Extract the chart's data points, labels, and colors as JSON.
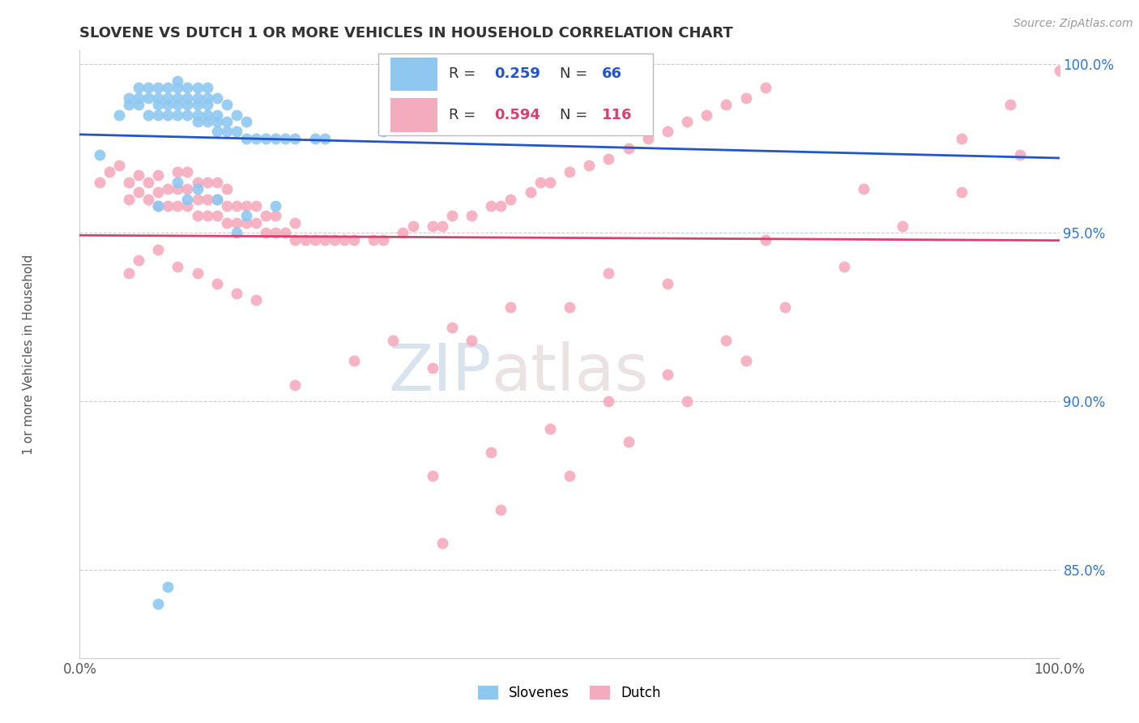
{
  "title": "SLOVENE VS DUTCH 1 OR MORE VEHICLES IN HOUSEHOLD CORRELATION CHART",
  "source_text": "Source: ZipAtlas.com",
  "ylabel": "1 or more Vehicles in Household",
  "legend_labels": [
    "Slovenes",
    "Dutch"
  ],
  "legend_r": [
    "R = 0.259",
    "R = 0.594"
  ],
  "legend_n": [
    "N = 66",
    "N = 116"
  ],
  "xlim": [
    0.0,
    1.0
  ],
  "ylim_low": 0.824,
  "ylim_high": 1.004,
  "blue_color": "#8EC8F0",
  "pink_color": "#F5ABBE",
  "blue_line_color": "#2255CC",
  "pink_line_color": "#D94070",
  "watermark_zip": "ZIP",
  "watermark_atlas": "atlas",
  "slovene_x": [
    0.02,
    0.04,
    0.05,
    0.05,
    0.06,
    0.06,
    0.06,
    0.07,
    0.07,
    0.07,
    0.08,
    0.08,
    0.08,
    0.08,
    0.09,
    0.09,
    0.09,
    0.09,
    0.1,
    0.1,
    0.1,
    0.1,
    0.1,
    0.11,
    0.11,
    0.11,
    0.11,
    0.12,
    0.12,
    0.12,
    0.12,
    0.12,
    0.13,
    0.13,
    0.13,
    0.13,
    0.13,
    0.14,
    0.14,
    0.14,
    0.14,
    0.15,
    0.15,
    0.15,
    0.16,
    0.16,
    0.17,
    0.17,
    0.18,
    0.19,
    0.2,
    0.21,
    0.22,
    0.24,
    0.25,
    0.31,
    0.08,
    0.1,
    0.11,
    0.12,
    0.14,
    0.16,
    0.17,
    0.2,
    0.08,
    0.09
  ],
  "slovene_y": [
    0.973,
    0.985,
    0.988,
    0.99,
    0.988,
    0.99,
    0.993,
    0.985,
    0.99,
    0.993,
    0.985,
    0.988,
    0.99,
    0.993,
    0.985,
    0.988,
    0.99,
    0.993,
    0.985,
    0.988,
    0.99,
    0.993,
    0.995,
    0.985,
    0.988,
    0.99,
    0.993,
    0.983,
    0.985,
    0.988,
    0.99,
    0.993,
    0.983,
    0.985,
    0.988,
    0.99,
    0.993,
    0.98,
    0.983,
    0.985,
    0.99,
    0.98,
    0.983,
    0.988,
    0.98,
    0.985,
    0.978,
    0.983,
    0.978,
    0.978,
    0.978,
    0.978,
    0.978,
    0.978,
    0.978,
    0.98,
    0.958,
    0.965,
    0.96,
    0.963,
    0.96,
    0.95,
    0.955,
    0.958,
    0.84,
    0.845
  ],
  "dutch_x": [
    0.02,
    0.03,
    0.04,
    0.05,
    0.05,
    0.06,
    0.06,
    0.07,
    0.07,
    0.08,
    0.08,
    0.08,
    0.09,
    0.09,
    0.1,
    0.1,
    0.1,
    0.11,
    0.11,
    0.11,
    0.12,
    0.12,
    0.12,
    0.13,
    0.13,
    0.13,
    0.14,
    0.14,
    0.14,
    0.15,
    0.15,
    0.15,
    0.16,
    0.16,
    0.17,
    0.17,
    0.18,
    0.18,
    0.19,
    0.19,
    0.2,
    0.2,
    0.21,
    0.22,
    0.22,
    0.23,
    0.24,
    0.25,
    0.26,
    0.27,
    0.28,
    0.3,
    0.31,
    0.33,
    0.34,
    0.36,
    0.37,
    0.38,
    0.4,
    0.42,
    0.43,
    0.44,
    0.46,
    0.47,
    0.48,
    0.5,
    0.52,
    0.54,
    0.56,
    0.58,
    0.6,
    0.62,
    0.64,
    0.66,
    0.68,
    0.7,
    0.05,
    0.06,
    0.08,
    0.1,
    0.12,
    0.14,
    0.16,
    0.18,
    0.36,
    0.4,
    0.5,
    0.6,
    0.7,
    0.8,
    0.9,
    0.95,
    1.0,
    0.22,
    0.28,
    0.32,
    0.38,
    0.44,
    0.54,
    0.36,
    0.42,
    0.48,
    0.54,
    0.6,
    0.66,
    0.72,
    0.78,
    0.84,
    0.9,
    0.96,
    0.37,
    0.43,
    0.5,
    0.56,
    0.62,
    0.68
  ],
  "dutch_y": [
    0.965,
    0.968,
    0.97,
    0.96,
    0.965,
    0.962,
    0.967,
    0.96,
    0.965,
    0.958,
    0.962,
    0.967,
    0.958,
    0.963,
    0.958,
    0.963,
    0.968,
    0.958,
    0.963,
    0.968,
    0.955,
    0.96,
    0.965,
    0.955,
    0.96,
    0.965,
    0.955,
    0.96,
    0.965,
    0.953,
    0.958,
    0.963,
    0.953,
    0.958,
    0.953,
    0.958,
    0.953,
    0.958,
    0.95,
    0.955,
    0.95,
    0.955,
    0.95,
    0.948,
    0.953,
    0.948,
    0.948,
    0.948,
    0.948,
    0.948,
    0.948,
    0.948,
    0.948,
    0.95,
    0.952,
    0.952,
    0.952,
    0.955,
    0.955,
    0.958,
    0.958,
    0.96,
    0.962,
    0.965,
    0.965,
    0.968,
    0.97,
    0.972,
    0.975,
    0.978,
    0.98,
    0.983,
    0.985,
    0.988,
    0.99,
    0.993,
    0.938,
    0.942,
    0.945,
    0.94,
    0.938,
    0.935,
    0.932,
    0.93,
    0.91,
    0.918,
    0.928,
    0.935,
    0.948,
    0.963,
    0.978,
    0.988,
    0.998,
    0.905,
    0.912,
    0.918,
    0.922,
    0.928,
    0.938,
    0.878,
    0.885,
    0.892,
    0.9,
    0.908,
    0.918,
    0.928,
    0.94,
    0.952,
    0.962,
    0.973,
    0.858,
    0.868,
    0.878,
    0.888,
    0.9,
    0.912
  ]
}
